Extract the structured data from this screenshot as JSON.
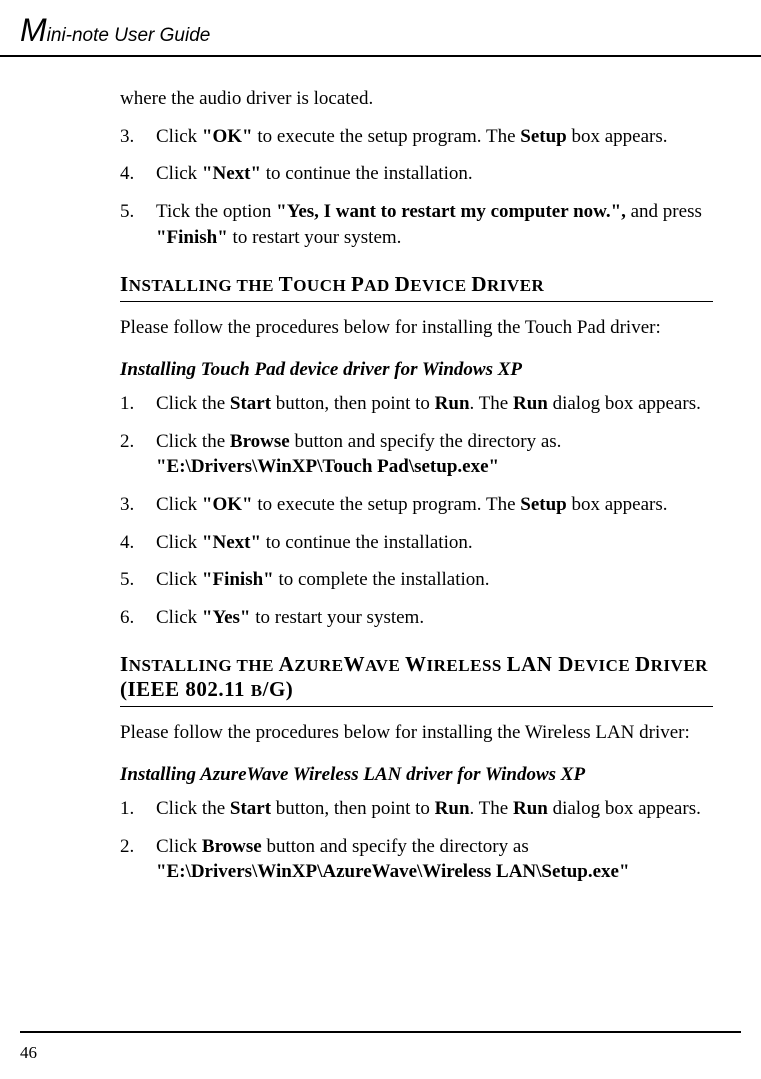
{
  "header": {
    "title_prefix": "M",
    "title_rest": "ini-note User Guide"
  },
  "intro_continuation": "where the audio driver is located.",
  "prelist": [
    {
      "n": "3.",
      "html": "Click <b>\"OK\"</b> to execute the setup program. The <b>Setup</b> box appears."
    },
    {
      "n": "4.",
      "html": "Click <b>\"Next\"</b> to continue the installation."
    },
    {
      "n": "5.",
      "html": "Tick the option <b>\"Yes, I want to restart my computer now.\",</b> and press <b>\"Finish\"</b> to restart your system."
    }
  ],
  "section1": {
    "heading_html": "I<span class=\"sc\">NSTALLING THE </span>T<span class=\"sc\">OUCH </span>P<span class=\"sc\">AD </span>D<span class=\"sc\">EVICE </span>D<span class=\"sc\">RIVER</span>",
    "lead": "Please follow the procedures below for installing the Touch Pad driver:",
    "subheading": "Installing Touch Pad device driver for Windows XP",
    "items": [
      {
        "n": "1.",
        "html": "Click the <b>Start</b> button, then point to <b>Run</b>. The <b>Run</b> dialog box appears."
      },
      {
        "n": "2.",
        "html": "Click the <b>Browse</b> button and specify the directory as.<br><b>\"E:\\Drivers\\WinXP\\Touch Pad\\setup.exe\"</b>"
      },
      {
        "n": "3.",
        "html": "Click <b>\"OK\"</b> to execute the setup program. The <b>Setup</b> box appears."
      },
      {
        "n": "4.",
        "html": "Click <b>\"Next\"</b> to continue the installation."
      },
      {
        "n": "5.",
        "html": "Click <b>\"Finish\"</b> to complete the installation."
      },
      {
        "n": "6.",
        "html": "Click <b>\"Yes\"</b> to restart your system."
      }
    ]
  },
  "section2": {
    "heading_html": "I<span class=\"sc\">NSTALLING THE </span>A<span class=\"sc\">ZURE</span>W<span class=\"sc\">AVE </span>W<span class=\"sc\">IRELESS </span>LAN D<span class=\"sc\">EVICE </span>D<span class=\"sc\">RIVER </span>(IEEE 802.11 <span class=\"sc\">B</span>/G)",
    "lead": "Please follow the procedures below for installing the Wireless LAN driver:",
    "subheading_html": "Installing <span class=\"nonital\">AzureWave</span> Wireless LAN driver for Windows XP",
    "items": [
      {
        "n": "1.",
        "html": "Click the <b>Start</b> button, then point to <b>Run</b>. The <b>Run</b> dialog box appears."
      },
      {
        "n": "2.",
        "html": "Click <b>Browse</b> button and specify the directory as<br><b>\"E:\\Drivers\\WinXP\\AzureWave\\Wireless LAN\\Setup.exe\"</b>"
      }
    ]
  },
  "page_number": "46"
}
